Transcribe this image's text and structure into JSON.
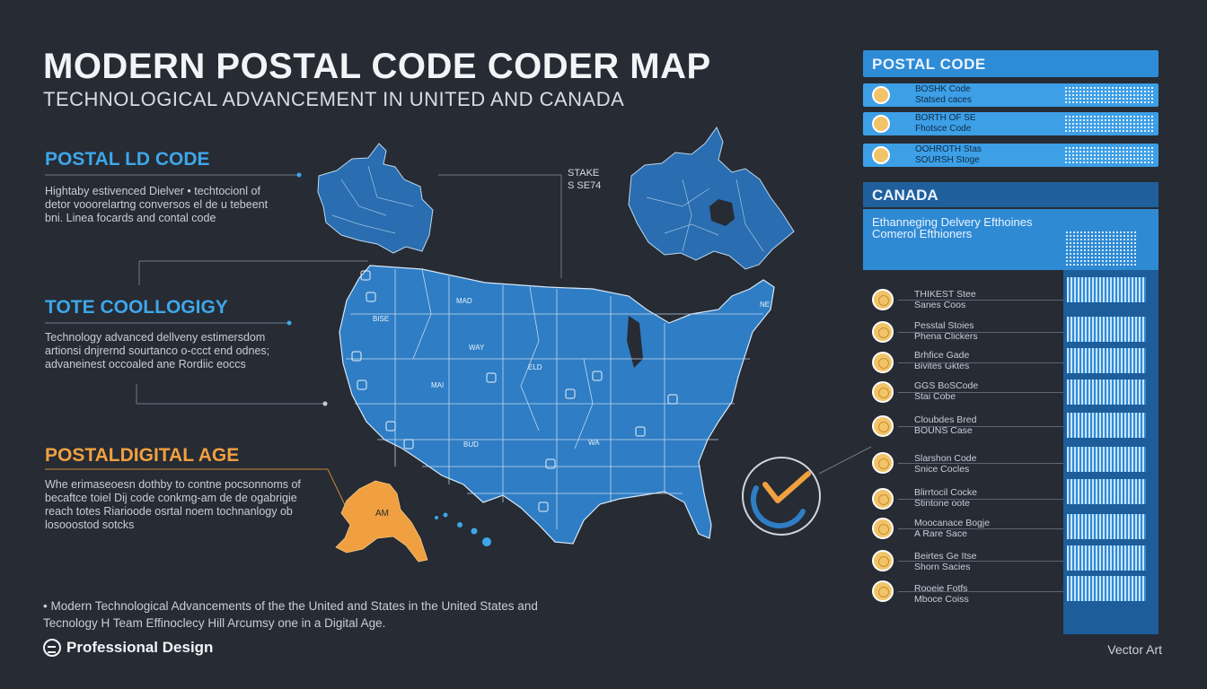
{
  "header": {
    "title": "MODERN POSTAL CODE CODER MAP",
    "subtitle": "TECHNOLOGICAL ADVANCEMENT IN UNITED AND CANADA"
  },
  "sections": [
    {
      "heading": "POSTAL LD CODE",
      "body": "Hightaby estivenced Dielver • techtocionl of detor vooorelartng conversos el de u tebeent bni. Linea focards and contal code",
      "color": "#3ea6e8"
    },
    {
      "heading": "TOTE COOLLOGIGY",
      "body": "Technology advanced dellveny estimersdom artionsi dnjrernd sourtanco o-ccct end odnes; advaneinest occoaled ane Rordiic eoccs",
      "color": "#3ea6e8"
    },
    {
      "heading": "POSTALDIGITAL AGE",
      "body": "Whe erimaseoesn dothby to contne pocsonnoms of becaftce toiel Dij code conkmg-am de de ogabrigie reach totes Riarioode osrtal noem tochnanlogy ob losooostod sotcks",
      "color": "#f0a040"
    }
  ],
  "map": {
    "state_label_1": "STAKE",
    "state_label_2": "S SE74",
    "labels": [
      "MAD",
      "WAY",
      "BISE",
      "MAI",
      "BUD",
      "ELD",
      "WA",
      "NE"
    ],
    "alaska_label": "AM",
    "us_color": "#2f7dc4",
    "canada_color": "#2a73b6",
    "alaska_color": "#f0a040"
  },
  "footer": {
    "line1": "• Modern Technological Advancements of the the United and States in the United States and",
    "line2": "Tecnology H Team Effinoclecy Hill Arcumsy one in a Digital Age.",
    "logo": "Professional Design",
    "credit": "Vector Art"
  },
  "postal_panel": {
    "heading": "POSTAL CODE",
    "rows": [
      {
        "line1": "BOSHK Code",
        "line2": "Statsed caces"
      },
      {
        "line1": "BORTH OF SE",
        "line2": "Fhotsce Code"
      },
      {
        "line1": "OOHROTH Stas",
        "line2": "SOURSH Stoge"
      }
    ]
  },
  "canada_panel": {
    "heading": "CANADA",
    "text": "Ethanneging Delvery Efthoines Comerol Efthioners"
  },
  "list_items": [
    {
      "line1": "THIKEST Stee",
      "line2": "Sanes Coos"
    },
    {
      "line1": "Pesstal Stoies",
      "line2": "Phena Clickers"
    },
    {
      "line1": "Brhfice Gade",
      "line2": "Bivites Gktes"
    },
    {
      "line1": "GGS BoSCode",
      "line2": "Stai Cobe"
    },
    {
      "line1": "Cloubdes Bred",
      "line2": "BOUNS Case"
    },
    {
      "line1": "Slarshon Code",
      "line2": "Snice Cocles"
    },
    {
      "line1": "Blirrtocil Cocke",
      "line2": "Stintone oote"
    },
    {
      "line1": "Moocanace Bogje",
      "line2": "A Rare Sace"
    },
    {
      "line1": "Beirtes Ge Itse",
      "line2": "Shorn Sacies"
    },
    {
      "line1": "Rooeie Fotfs",
      "line2": "Mboce Coiss"
    }
  ],
  "accent": {
    "orange": "#f0a040",
    "blue": "#3ea6e8",
    "bg": "#262b34"
  }
}
